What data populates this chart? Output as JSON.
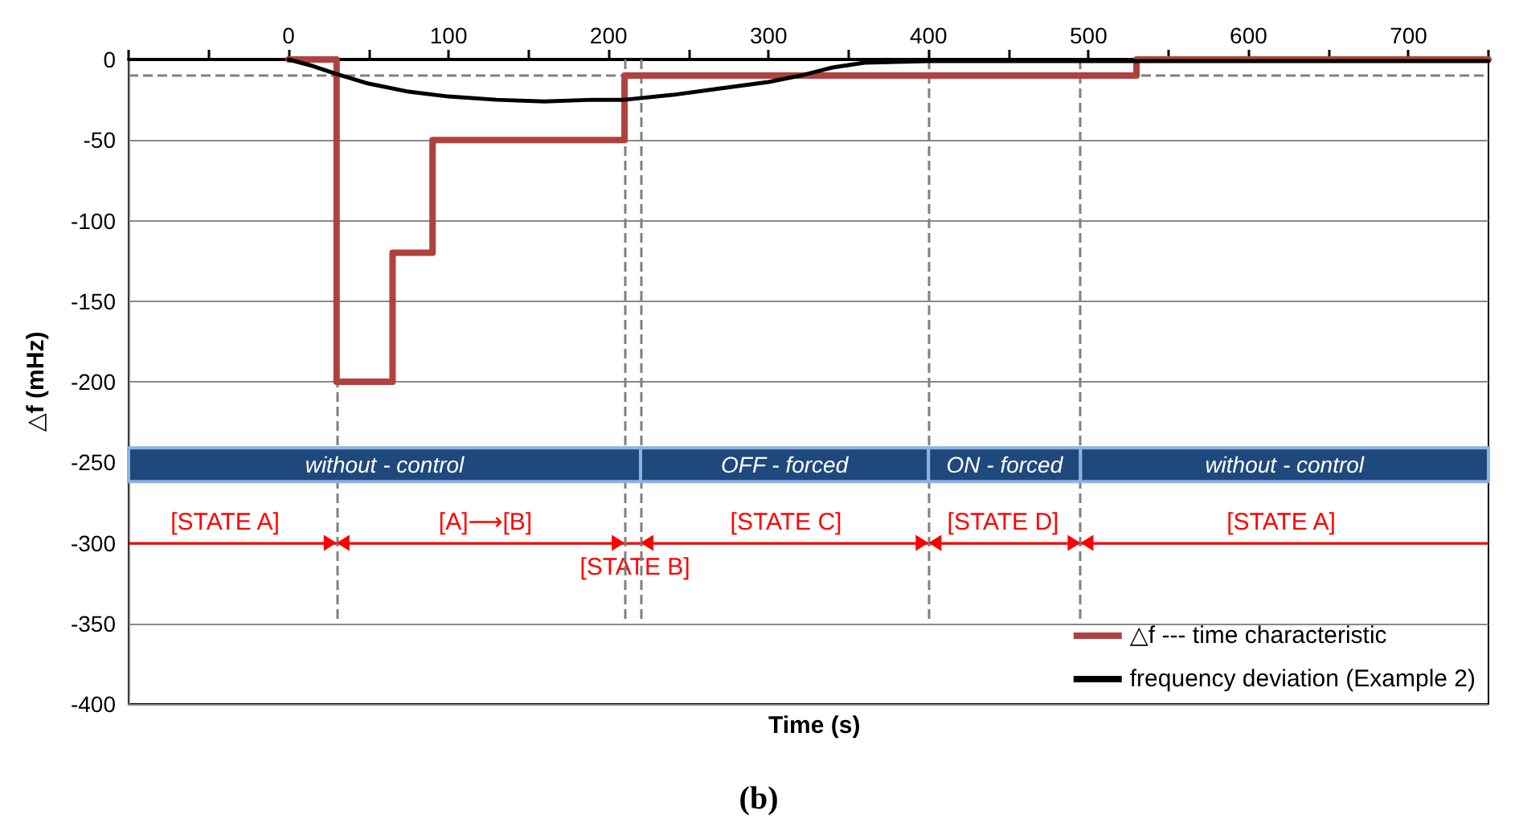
{
  "chart_data": {
    "type": "line",
    "xlabel": "Time (s)",
    "ylabel": "△f (mHz)",
    "xlim": [
      -100,
      750
    ],
    "xticks": [
      {
        "value": -100,
        "label": null
      },
      {
        "value": -50,
        "label": null
      },
      0,
      {
        "value": 50,
        "label": null
      },
      100,
      {
        "value": 150,
        "label": null
      },
      200,
      {
        "value": 250,
        "label": null
      },
      300,
      {
        "value": 350,
        "label": null
      },
      400,
      {
        "value": 450,
        "label": null
      },
      500,
      {
        "value": 550,
        "label": null
      },
      600,
      {
        "value": 650,
        "label": null
      },
      700,
      {
        "value": 750,
        "label": null
      }
    ],
    "ylim": [
      -400,
      0
    ],
    "yticks": [
      0,
      -50,
      -100,
      -150,
      -200,
      -250,
      -300,
      -350,
      -400
    ],
    "grid": "y",
    "legend": "bottom right",
    "marker": "none",
    "series": [
      {
        "name": "△f --- time characteristic",
        "type": "step",
        "color": "#b0413e",
        "x": [
          0,
          30,
          65,
          90,
          210,
          530,
          750
        ],
        "values": [
          0,
          -200,
          -120,
          -50,
          -10,
          0,
          0
        ]
      },
      {
        "name": "frequency deviation (Example 2)",
        "type": "line",
        "color": "#000000",
        "x": [
          0,
          15,
          30,
          50,
          75,
          100,
          130,
          160,
          190,
          210,
          240,
          270,
          300,
          320,
          340,
          360,
          400,
          500,
          600,
          750
        ],
        "values": [
          0,
          -4,
          -9,
          -15,
          -20,
          -23,
          -25,
          -26,
          -25,
          -25,
          -22,
          -18,
          -14,
          -10,
          -5,
          -2,
          -1,
          -1,
          -1,
          -1
        ]
      }
    ],
    "ref_lines": [
      {
        "axis": "y",
        "value": -10,
        "color": "#808080",
        "line_style": "dashed"
      },
      {
        "axis": "y",
        "value": -300,
        "color": "#ff0000",
        "line_style": "solid"
      },
      {
        "axis": "x",
        "value": 30,
        "color": "#808080",
        "line_style": "dashed"
      },
      {
        "axis": "x",
        "value": 210,
        "color": "#808080",
        "line_style": "dashed"
      },
      {
        "axis": "x",
        "value": 220,
        "color": "#808080",
        "line_style": "dashed"
      },
      {
        "axis": "x",
        "value": 400,
        "color": "#808080",
        "line_style": "dashed"
      },
      {
        "axis": "x",
        "value": 495,
        "color": "#808080",
        "line_style": "dashed"
      }
    ],
    "bands": [
      {
        "axis": "x",
        "from": -100,
        "to": 220,
        "label": "without - control",
        "color": "#1f497d"
      },
      {
        "axis": "x",
        "from": 220,
        "to": 400,
        "label": "OFF - forced",
        "color": "#1f497d"
      },
      {
        "axis": "x",
        "from": 400,
        "to": 495,
        "label": "ON - forced",
        "color": "#1f497d"
      },
      {
        "axis": "x",
        "from": 495,
        "to": 750,
        "label": "without - control",
        "color": "#1f497d"
      }
    ],
    "annotations": [
      "[STATE A]",
      "[A]⟶[B]",
      "[STATE B]",
      "[STATE C]",
      "[STATE D]",
      "[STATE A]",
      "(b)"
    ]
  }
}
